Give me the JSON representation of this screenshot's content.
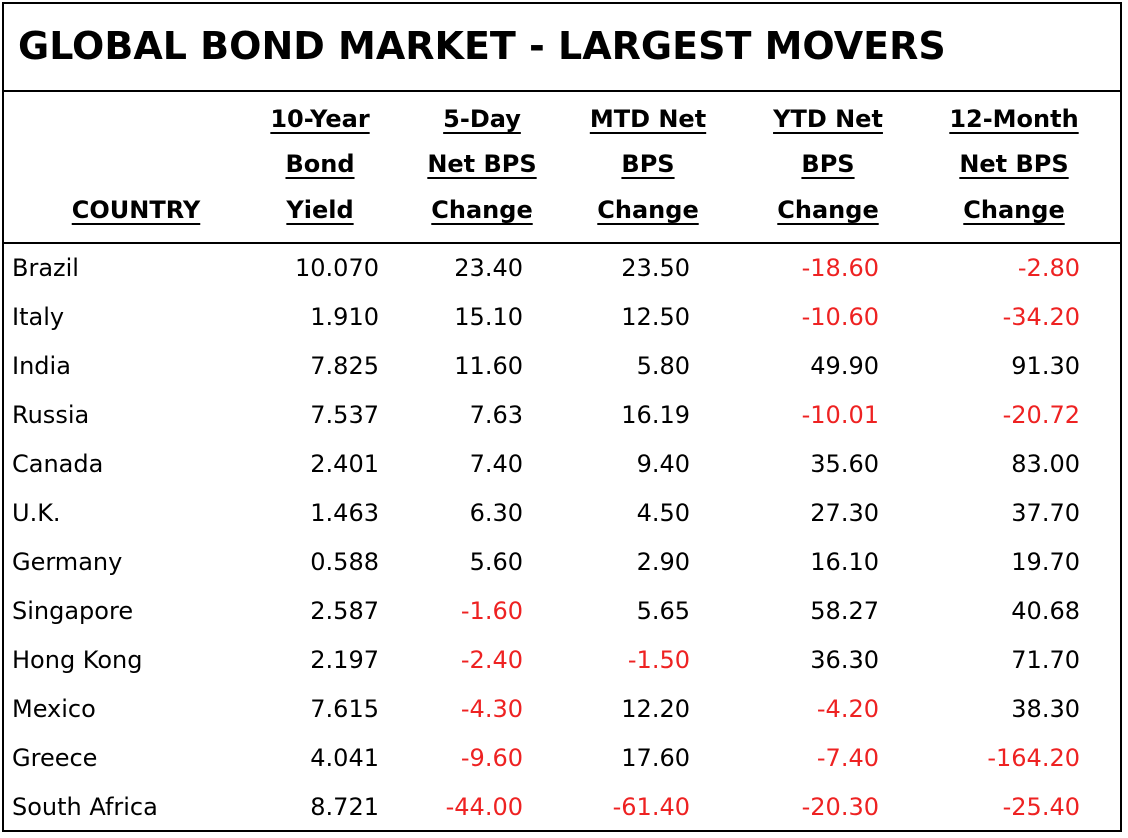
{
  "title": "GLOBAL BOND MARKET - LARGEST MOVERS",
  "chart_data": {
    "type": "table",
    "title": "GLOBAL BOND MARKET - LARGEST MOVERS",
    "columns": [
      {
        "key": "country",
        "lines": [
          "COUNTRY"
        ]
      },
      {
        "key": "yield",
        "lines": [
          "10-Year",
          "Bond",
          "Yield"
        ]
      },
      {
        "key": "d5",
        "lines": [
          "5-Day",
          "Net BPS",
          "Change"
        ]
      },
      {
        "key": "mtd",
        "lines": [
          "MTD Net",
          "BPS",
          "Change"
        ]
      },
      {
        "key": "ytd",
        "lines": [
          "YTD Net",
          "BPS",
          "Change"
        ]
      },
      {
        "key": "m12",
        "lines": [
          "12-Month",
          "Net BPS",
          "Change"
        ]
      }
    ],
    "rows": [
      {
        "country": "Brazil",
        "yield": "10.070",
        "d5": "23.40",
        "mtd": "23.50",
        "ytd": "-18.60",
        "m12": "-2.80"
      },
      {
        "country": "Italy",
        "yield": "1.910",
        "d5": "15.10",
        "mtd": "12.50",
        "ytd": "-10.60",
        "m12": "-34.20"
      },
      {
        "country": "India",
        "yield": "7.825",
        "d5": "11.60",
        "mtd": "5.80",
        "ytd": "49.90",
        "m12": "91.30"
      },
      {
        "country": "Russia",
        "yield": "7.537",
        "d5": "7.63",
        "mtd": "16.19",
        "ytd": "-10.01",
        "m12": "-20.72"
      },
      {
        "country": "Canada",
        "yield": "2.401",
        "d5": "7.40",
        "mtd": "9.40",
        "ytd": "35.60",
        "m12": "83.00"
      },
      {
        "country": "U.K.",
        "yield": "1.463",
        "d5": "6.30",
        "mtd": "4.50",
        "ytd": "27.30",
        "m12": "37.70"
      },
      {
        "country": "Germany",
        "yield": "0.588",
        "d5": "5.60",
        "mtd": "2.90",
        "ytd": "16.10",
        "m12": "19.70"
      },
      {
        "country": "Singapore",
        "yield": "2.587",
        "d5": "-1.60",
        "mtd": "5.65",
        "ytd": "58.27",
        "m12": "40.68"
      },
      {
        "country": "Hong Kong",
        "yield": "2.197",
        "d5": "-2.40",
        "mtd": "-1.50",
        "ytd": "36.30",
        "m12": "71.70"
      },
      {
        "country": "Mexico",
        "yield": "7.615",
        "d5": "-4.30",
        "mtd": "12.20",
        "ytd": "-4.20",
        "m12": "38.30"
      },
      {
        "country": "Greece",
        "yield": "4.041",
        "d5": "-9.60",
        "mtd": "17.60",
        "ytd": "-7.40",
        "m12": "-164.20"
      },
      {
        "country": "South Africa",
        "yield": "8.721",
        "d5": "-44.00",
        "mtd": "-61.40",
        "ytd": "-20.30",
        "m12": "-25.40"
      }
    ],
    "colors": {
      "negative": "#ee2222",
      "positive": "#000000"
    }
  }
}
